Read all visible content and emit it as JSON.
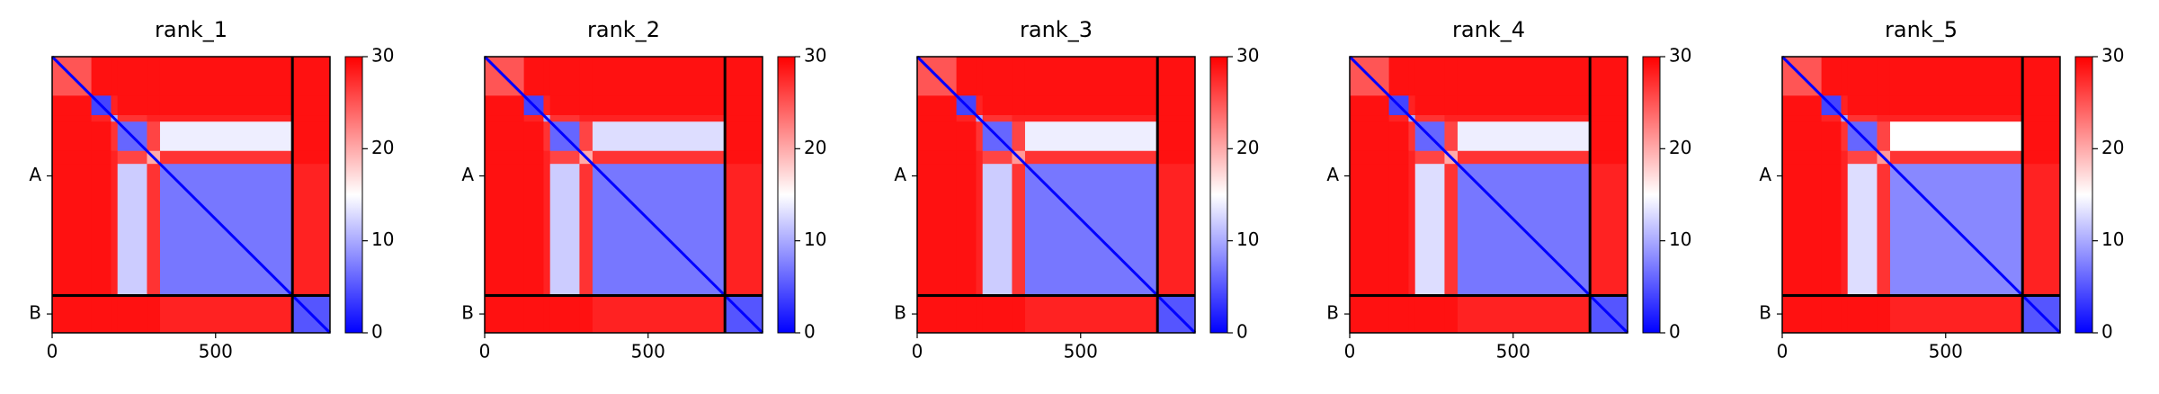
{
  "chart_data": [
    {
      "type": "heatmap",
      "title": "rank_1",
      "bounds": [
        0,
        120,
        180,
        200,
        290,
        330,
        735,
        850
      ],
      "matrix": [
        [
          25,
          29,
          29,
          29,
          29,
          29,
          29
        ],
        [
          29,
          4,
          28,
          29,
          29,
          29,
          29
        ],
        [
          29,
          28,
          10,
          27,
          28,
          28,
          29
        ],
        [
          29,
          29,
          27,
          6,
          26,
          14,
          29
        ],
        [
          29,
          29,
          28,
          26,
          20,
          27,
          29
        ],
        [
          29,
          29,
          28,
          12,
          27,
          7,
          28
        ],
        [
          29,
          29,
          29,
          29,
          29,
          28,
          5
        ]
      ],
      "chain_breaks": [
        735
      ],
      "xlim": [
        0,
        850
      ],
      "ylim": [
        850,
        0
      ],
      "xticks": [
        0,
        500
      ],
      "yticks": [
        {
          "value": 367,
          "label": "A"
        },
        {
          "value": 792,
          "label": "B"
        }
      ],
      "clim": [
        0,
        30
      ],
      "cticks": [
        0,
        10,
        20,
        30
      ],
      "colormap": "bwr"
    },
    {
      "type": "heatmap",
      "title": "rank_2",
      "bounds": [
        0,
        120,
        180,
        200,
        290,
        330,
        735,
        850
      ],
      "matrix": [
        [
          25,
          29,
          29,
          29,
          29,
          29,
          29
        ],
        [
          29,
          4,
          28,
          29,
          29,
          29,
          29
        ],
        [
          29,
          28,
          10,
          27,
          28,
          28,
          29
        ],
        [
          29,
          29,
          27,
          6,
          26,
          13,
          29
        ],
        [
          29,
          29,
          28,
          26,
          20,
          27,
          29
        ],
        [
          29,
          29,
          28,
          12,
          27,
          7,
          28
        ],
        [
          29,
          29,
          29,
          29,
          29,
          28,
          5
        ]
      ],
      "chain_breaks": [
        735
      ],
      "xlim": [
        0,
        850
      ],
      "ylim": [
        850,
        0
      ],
      "xticks": [
        0,
        500
      ],
      "yticks": [
        {
          "value": 367,
          "label": "A"
        },
        {
          "value": 792,
          "label": "B"
        }
      ],
      "clim": [
        0,
        30
      ],
      "cticks": [
        0,
        10,
        20,
        30
      ],
      "colormap": "bwr"
    },
    {
      "type": "heatmap",
      "title": "rank_3",
      "bounds": [
        0,
        120,
        180,
        200,
        290,
        330,
        735,
        850
      ],
      "matrix": [
        [
          25,
          29,
          29,
          29,
          29,
          29,
          29
        ],
        [
          29,
          4,
          28,
          29,
          29,
          29,
          29
        ],
        [
          29,
          28,
          10,
          27,
          28,
          28,
          29
        ],
        [
          29,
          29,
          27,
          6,
          26,
          14,
          29
        ],
        [
          29,
          29,
          28,
          26,
          21,
          27,
          29
        ],
        [
          29,
          29,
          28,
          12,
          27,
          7,
          28
        ],
        [
          29,
          29,
          29,
          29,
          29,
          28,
          5
        ]
      ],
      "chain_breaks": [
        735
      ],
      "xlim": [
        0,
        850
      ],
      "ylim": [
        850,
        0
      ],
      "xticks": [
        0,
        500
      ],
      "yticks": [
        {
          "value": 367,
          "label": "A"
        },
        {
          "value": 792,
          "label": "B"
        }
      ],
      "clim": [
        0,
        30
      ],
      "cticks": [
        0,
        10,
        20,
        30
      ],
      "colormap": "bwr"
    },
    {
      "type": "heatmap",
      "title": "rank_4",
      "bounds": [
        0,
        120,
        180,
        200,
        290,
        330,
        735,
        850
      ],
      "matrix": [
        [
          25,
          29,
          29,
          29,
          29,
          29,
          29
        ],
        [
          29,
          4,
          28,
          29,
          29,
          29,
          29
        ],
        [
          29,
          28,
          10,
          27,
          28,
          28,
          29
        ],
        [
          29,
          29,
          27,
          6,
          26,
          14,
          29
        ],
        [
          29,
          29,
          28,
          26,
          20,
          27,
          29
        ],
        [
          29,
          29,
          28,
          13,
          27,
          7,
          28
        ],
        [
          29,
          29,
          29,
          29,
          29,
          28,
          5
        ]
      ],
      "chain_breaks": [
        735
      ],
      "xlim": [
        0,
        850
      ],
      "ylim": [
        850,
        0
      ],
      "xticks": [
        0,
        500
      ],
      "yticks": [
        {
          "value": 367,
          "label": "A"
        },
        {
          "value": 792,
          "label": "B"
        }
      ],
      "clim": [
        0,
        30
      ],
      "cticks": [
        0,
        10,
        20,
        30
      ],
      "colormap": "bwr"
    },
    {
      "type": "heatmap",
      "title": "rank_5",
      "bounds": [
        0,
        120,
        180,
        200,
        290,
        330,
        735,
        850
      ],
      "matrix": [
        [
          25,
          29,
          29,
          29,
          29,
          29,
          29
        ],
        [
          29,
          4,
          28,
          29,
          29,
          29,
          29
        ],
        [
          29,
          28,
          10,
          27,
          28,
          28,
          29
        ],
        [
          29,
          29,
          27,
          6,
          26,
          15,
          29
        ],
        [
          29,
          29,
          28,
          26,
          21,
          27,
          29
        ],
        [
          29,
          29,
          28,
          13,
          27,
          8,
          28
        ],
        [
          29,
          29,
          29,
          29,
          29,
          28,
          5
        ]
      ],
      "chain_breaks": [
        735
      ],
      "xlim": [
        0,
        850
      ],
      "ylim": [
        850,
        0
      ],
      "xticks": [
        0,
        500
      ],
      "yticks": [
        {
          "value": 367,
          "label": "A"
        },
        {
          "value": 792,
          "label": "B"
        }
      ],
      "clim": [
        0,
        30
      ],
      "cticks": [
        0,
        10,
        20,
        30
      ],
      "colormap": "bwr"
    }
  ]
}
